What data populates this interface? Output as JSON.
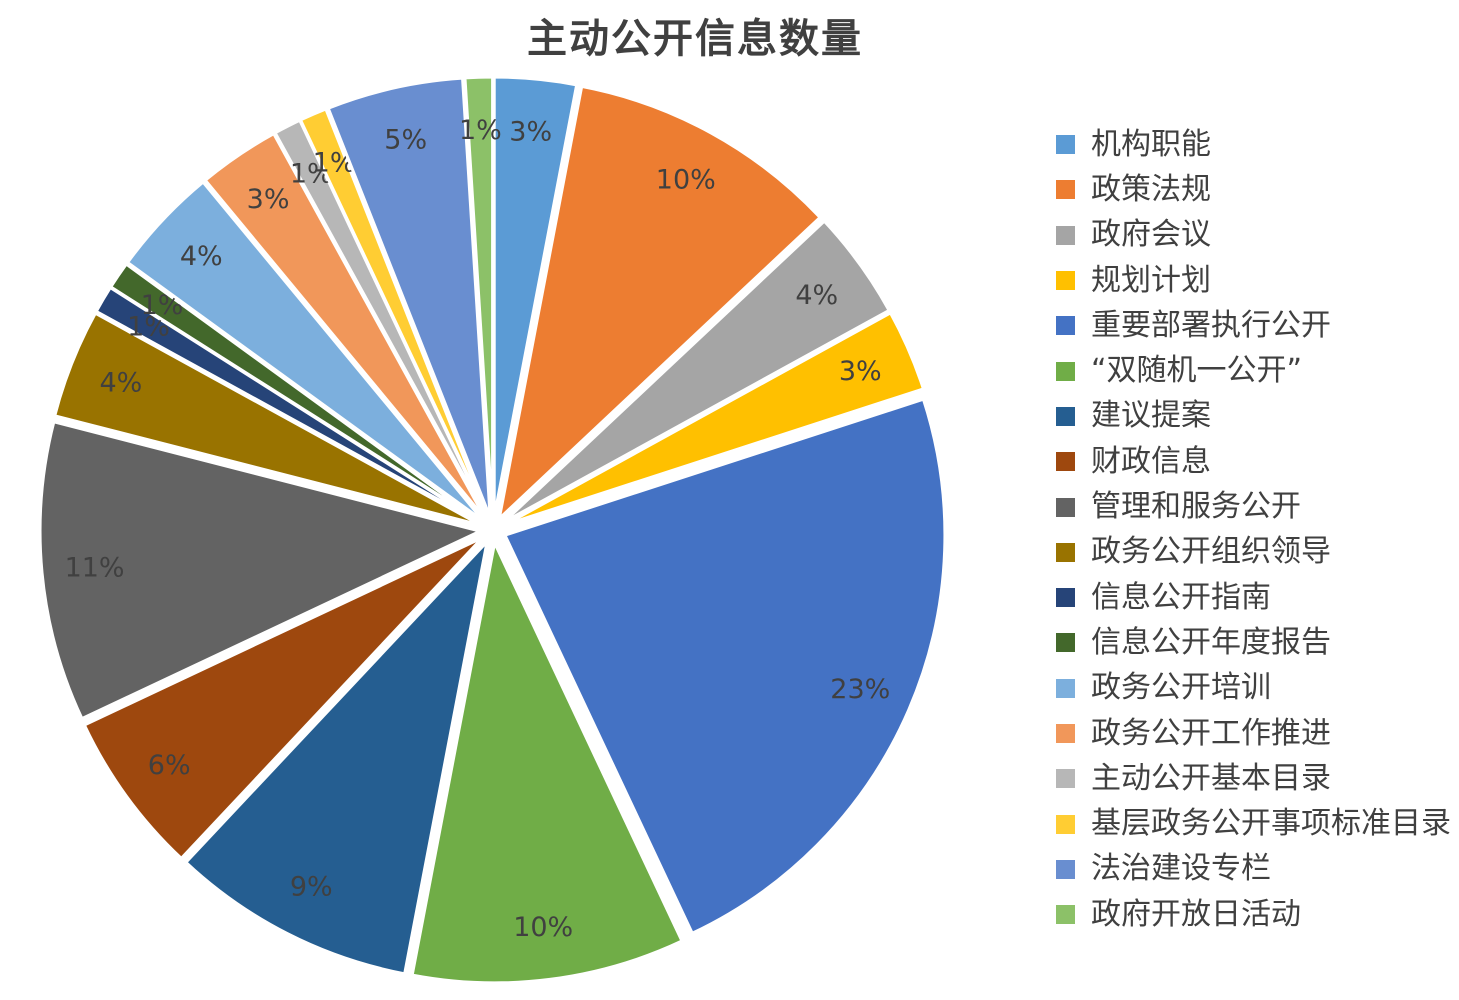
{
  "title": "主动公开信息数量",
  "chart_data": {
    "type": "pie",
    "title": "主动公开信息数量",
    "legend_position": "right",
    "start_angle_deg": 0,
    "direction": "clockwise",
    "exploded": true,
    "slices": [
      {
        "label": "机构职能",
        "value": 3,
        "pct_label": "3%",
        "color": "#5B9BD5"
      },
      {
        "label": "政策法规",
        "value": 10,
        "pct_label": "10%",
        "color": "#ED7D31"
      },
      {
        "label": "政府会议",
        "value": 4,
        "pct_label": "4%",
        "color": "#A5A5A5"
      },
      {
        "label": "规划计划",
        "value": 3,
        "pct_label": "3%",
        "color": "#FFC000"
      },
      {
        "label": "重要部署执行公开",
        "value": 23,
        "pct_label": "23%",
        "color": "#4472C4"
      },
      {
        "label": "“双随机一公开”",
        "value": 10,
        "pct_label": "10%",
        "color": "#70AD47"
      },
      {
        "label": "建议提案",
        "value": 9,
        "pct_label": "9%",
        "color": "#255E91"
      },
      {
        "label": "财政信息",
        "value": 6,
        "pct_label": "6%",
        "color": "#9E480E"
      },
      {
        "label": "管理和服务公开",
        "value": 11,
        "pct_label": "11%",
        "color": "#636363"
      },
      {
        "label": "政务公开组织领导",
        "value": 4,
        "pct_label": "4%",
        "color": "#997300"
      },
      {
        "label": "信息公开指南",
        "value": 1,
        "pct_label": "1%",
        "color": "#264478"
      },
      {
        "label": "信息公开年度报告",
        "value": 1,
        "pct_label": "1%",
        "color": "#43682B"
      },
      {
        "label": "政务公开培训",
        "value": 4,
        "pct_label": "4%",
        "color": "#7CAFDD"
      },
      {
        "label": "政务公开工作推进",
        "value": 3,
        "pct_label": "3%",
        "color": "#F1975A"
      },
      {
        "label": "主动公开基本目录",
        "value": 1,
        "pct_label": "1%",
        "color": "#B7B7B7"
      },
      {
        "label": "基层政务公开事项标准目录",
        "value": 1,
        "pct_label": "1%",
        "color": "#FFCD33"
      },
      {
        "label": "法治建设专栏",
        "value": 5,
        "pct_label": "5%",
        "color": "#698ED0"
      },
      {
        "label": "政府开放日活动",
        "value": 1,
        "pct_label": "1%",
        "color": "#8CC168"
      }
    ]
  },
  "colors": {
    "background": "#FFFFFF",
    "title_text": "#404040",
    "legend_text": "#404040",
    "slice_label_text": "#404040",
    "slice_border": "#FFFFFF"
  }
}
